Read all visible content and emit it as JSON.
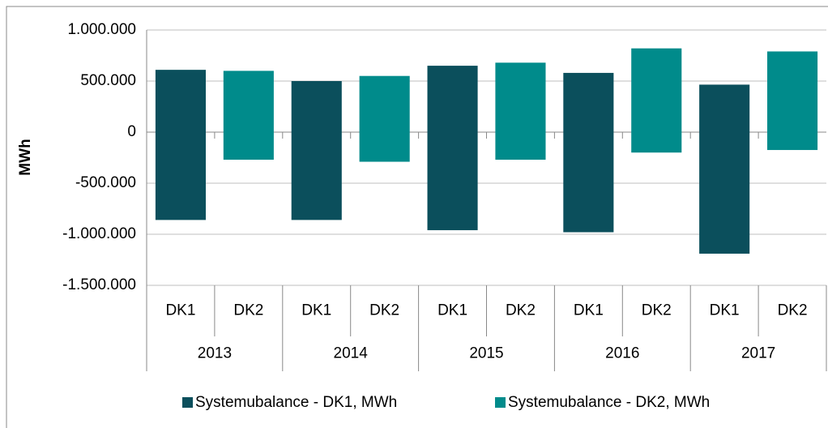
{
  "chart_data": {
    "type": "floating_bar",
    "y_label": "MWh",
    "groups": [
      "2013",
      "2014",
      "2015",
      "2016",
      "2017"
    ],
    "categories": [
      "DK1",
      "DK2"
    ],
    "series": [
      {
        "name": "Systemubalance - DK1, MWh",
        "color": "#0b4f5c",
        "high": [
          610000,
          500000,
          650000,
          580000,
          465000
        ],
        "low": [
          -860000,
          -860000,
          -960000,
          -980000,
          -1190000
        ]
      },
      {
        "name": "Systemubalance - DK2, MWh",
        "color": "#008b8b",
        "high": [
          600000,
          550000,
          680000,
          820000,
          790000
        ],
        "low": [
          -270000,
          -290000,
          -270000,
          -200000,
          -175000
        ]
      }
    ],
    "ylim": [
      -1500000,
      1000000
    ],
    "yticks": [
      {
        "value": -1500000,
        "label": "-1.500.000"
      },
      {
        "value": -1000000,
        "label": "-1.000.000"
      },
      {
        "value": -500000,
        "label": "-500.000"
      },
      0,
      {
        "value": 500000,
        "label": "500.000"
      },
      {
        "value": 1000000,
        "label": "1.000.000"
      }
    ],
    "grid": true,
    "legend": "bottom"
  }
}
